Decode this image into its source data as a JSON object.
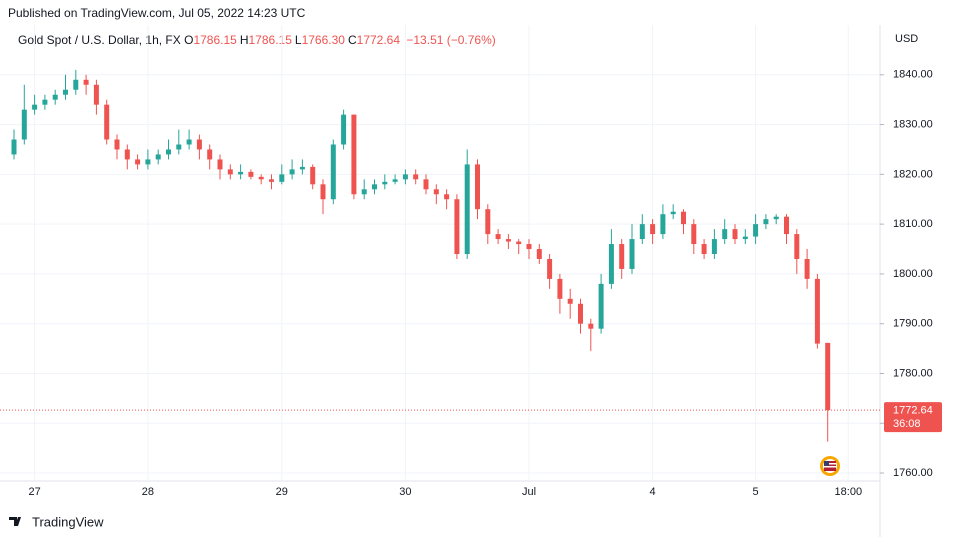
{
  "chart_data": {
    "type": "candlestick",
    "published": "Published on TradingView.com, Jul 05, 2022 14:23 UTC",
    "title": "Gold Spot / U.S. Dollar, 1h, FX",
    "ohlc_labels": [
      {
        "label": "O",
        "value": "1786.15"
      },
      {
        "label": "H",
        "value": "1786.15"
      },
      {
        "label": "L",
        "value": "1766.30"
      },
      {
        "label": "C",
        "value": "1772.64"
      }
    ],
    "change": "−13.51 (−0.76%)",
    "currency": "USD",
    "last_price": 1772.64,
    "countdown": "36:08",
    "brand": "TradingView",
    "up_color": "#26a69a",
    "down_color": "#ef5350",
    "grid": true,
    "categories": [
      null,
      null,
      "27",
      null,
      null,
      null,
      null,
      null,
      null,
      null,
      null,
      null,
      null,
      "28",
      null,
      null,
      null,
      null,
      null,
      null,
      null,
      null,
      null,
      null,
      null,
      null,
      "29",
      null,
      null,
      null,
      null,
      null,
      null,
      null,
      null,
      null,
      null,
      null,
      "30",
      null,
      null,
      null,
      null,
      null,
      null,
      null,
      null,
      null,
      null,
      null,
      "Jul",
      null,
      null,
      null,
      null,
      null,
      null,
      null,
      null,
      null,
      null,
      null,
      "4",
      null,
      null,
      null,
      null,
      null,
      null,
      null,
      null,
      null,
      "5",
      null,
      null,
      null,
      null,
      null,
      null,
      null,
      null,
      "18:00"
    ],
    "open": [
      1824,
      1827,
      1833,
      1834,
      1835,
      1836,
      1837,
      1839,
      1838,
      1834,
      1827,
      1825,
      1823,
      1822,
      1823,
      1824,
      1825,
      1826,
      1827,
      1825,
      1823,
      1821,
      1820,
      1820.5,
      1819.5,
      1819,
      1818.5,
      1820,
      1821,
      1821.5,
      1818,
      1815,
      1826,
      1832,
      1816,
      1817,
      1818,
      1818.5,
      1819,
      1820,
      1819,
      1817,
      1816,
      1815,
      1804,
      1822,
      1813,
      1808,
      1807,
      1806.5,
      1806,
      1805,
      1803,
      1799,
      1795,
      1794,
      1790,
      1789,
      1798,
      1806,
      1801,
      1807,
      1810,
      1808,
      1812,
      1812.5,
      1810,
      1806,
      1804,
      1807,
      1809,
      1807,
      1807.5,
      1810,
      1811,
      1811.5,
      1808,
      1803,
      1799,
      1786.15,
      null,
      null
    ],
    "high": [
      1829,
      1838,
      1836,
      1836,
      1837,
      1840,
      1841,
      1840,
      1839,
      1835,
      1828,
      1826,
      1824,
      1825,
      1825,
      1827,
      1829,
      1829,
      1828,
      1826,
      1824,
      1822,
      1822,
      1821,
      1820,
      1820,
      1822,
      1823,
      1823,
      1822,
      1819,
      1827,
      1833,
      1832,
      1819,
      1819,
      1820,
      1820,
      1821,
      1821,
      1820,
      1818,
      1817,
      1816,
      1825,
      1823,
      1814,
      1809,
      1808,
      1807,
      1807,
      1806,
      1804,
      1800,
      1797,
      1795,
      1791,
      1800,
      1809,
      1807,
      1810,
      1812,
      1811,
      1814,
      1814,
      1813,
      1811,
      1807,
      1809,
      1811,
      1810,
      1809,
      1812,
      1812,
      1812,
      1812,
      1809,
      1805,
      1800,
      1786.15,
      null,
      null
    ],
    "low": [
      1823,
      1826,
      1832,
      1833,
      1834,
      1835,
      1836,
      1836,
      1832,
      1826,
      1823,
      1821,
      1821,
      1821,
      1822,
      1823,
      1824,
      1825,
      1823,
      1821,
      1819,
      1819,
      1819,
      1819,
      1818,
      1817,
      1818,
      1819,
      1820,
      1817,
      1812,
      1814,
      1825,
      1815,
      1815,
      1816,
      1817,
      1818,
      1818,
      1818,
      1816,
      1814,
      1813,
      1803,
      1803,
      1811,
      1806,
      1806,
      1805,
      1804,
      1803,
      1802,
      1797,
      1792,
      1791,
      1788,
      1784.5,
      1788,
      1797,
      1799,
      1800,
      1806,
      1806,
      1807,
      1811,
      1808,
      1804,
      1803,
      1803,
      1806,
      1806,
      1806,
      1806,
      1809,
      1810,
      1806,
      1800,
      1797,
      1785,
      1766.3,
      null,
      null
    ],
    "close": [
      1827,
      1833,
      1834,
      1835,
      1836,
      1837,
      1839,
      1838,
      1834,
      1827,
      1825,
      1823,
      1822,
      1823,
      1824,
      1825,
      1826,
      1827,
      1825,
      1823,
      1821,
      1820,
      1820.5,
      1819.5,
      1819,
      1818.5,
      1820,
      1821,
      1821.5,
      1818,
      1815,
      1826,
      1832,
      1816,
      1817,
      1818,
      1818.5,
      1819,
      1820,
      1819,
      1817,
      1816,
      1815,
      1804,
      1822,
      1813,
      1808,
      1807,
      1806.5,
      1806,
      1805,
      1803,
      1799,
      1795,
      1794,
      1790,
      1789,
      1798,
      1806,
      1801,
      1807,
      1810,
      1808,
      1812,
      1812.5,
      1810,
      1806,
      1804,
      1807,
      1809,
      1807,
      1807.5,
      1810,
      1811,
      1811.5,
      1808,
      1803,
      1799,
      1786,
      1772.64,
      null,
      null
    ],
    "ylim": [
      1758.6,
      1849
    ],
    "yticks": [
      {
        "value": 1760,
        "label": "1760.00"
      },
      {
        "value": 1770,
        "label": "1770.00"
      },
      {
        "value": 1780,
        "label": "1780.00"
      },
      {
        "value": 1790,
        "label": "1790.00"
      },
      {
        "value": 1800,
        "label": "1800.00"
      },
      {
        "value": 1810,
        "label": "1810.00"
      },
      {
        "value": 1820,
        "label": "1820.00"
      },
      {
        "value": 1830,
        "label": "1830.00"
      },
      {
        "value": 1840,
        "label": "1840.00"
      }
    ]
  }
}
